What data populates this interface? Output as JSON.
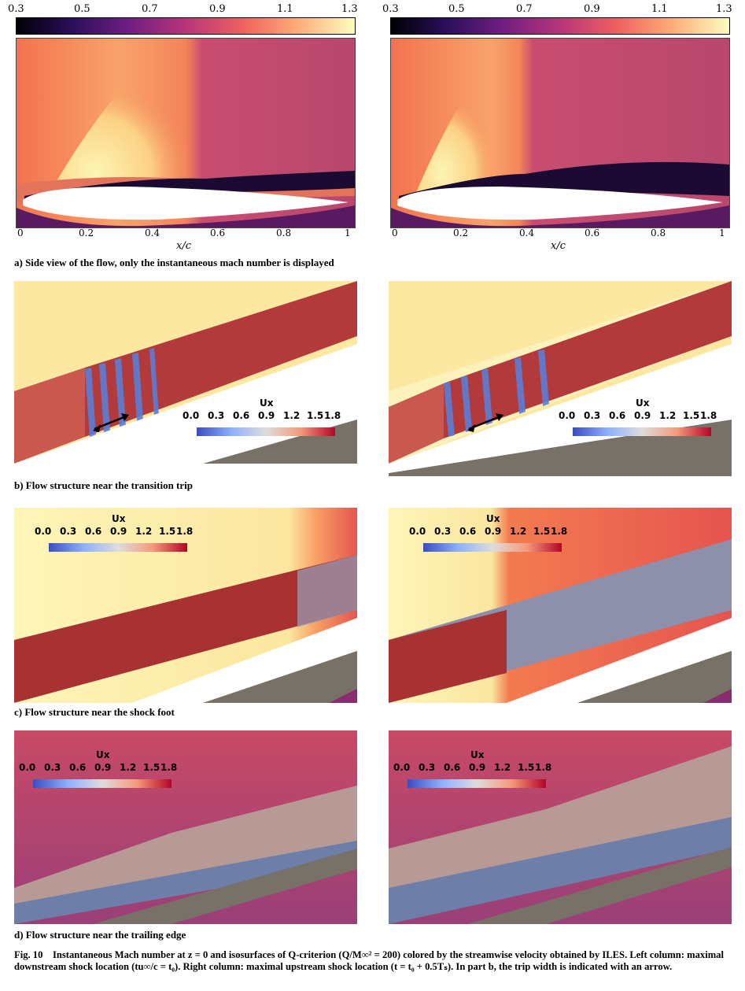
{
  "colorbar_top": {
    "ticks": [
      "0.3",
      "0.5",
      "0.7",
      "0.9",
      "1.1",
      "1.3"
    ],
    "colormap": [
      "#000004",
      "#2c105c",
      "#711f81",
      "#b63679",
      "#ee605e",
      "#fdae78",
      "#fcfdbf"
    ]
  },
  "axis_x": {
    "ticks": [
      "0",
      "0.2",
      "0.4",
      "0.6",
      "0.8",
      "1"
    ],
    "label": "x/c"
  },
  "sections": {
    "a_label": "a) Side view of the flow, only the instantaneous mach number is displayed",
    "b_label": "b) Flow structure near the transition trip",
    "c_label": "c) Flow structure near the shock foot",
    "d_label": "d) Flow structure near the trailing edge"
  },
  "ux_colorbar": {
    "title": "Ux",
    "ticks": [
      "0.0",
      "0.3",
      "0.6",
      "0.9",
      "1.2",
      "1.5",
      "1.8"
    ],
    "colors": [
      "#3b4cc0",
      "#8db0fe",
      "#dddddd",
      "#f49a7b",
      "#b40426"
    ]
  },
  "caption": {
    "fig": "Fig. 10",
    "text": "Instantaneous Mach number at z = 0 and isosurfaces of Q-criterion (Q/M∞² = 200) colored by the streamwise velocity obtained by ILES. Left column: maximal downstream shock location (tu∞/c = t₀). Right column: maximal upstream shock location (t = t₀ + 0.5Tₛ). In part b, the trip width is indicated with an arrow."
  }
}
